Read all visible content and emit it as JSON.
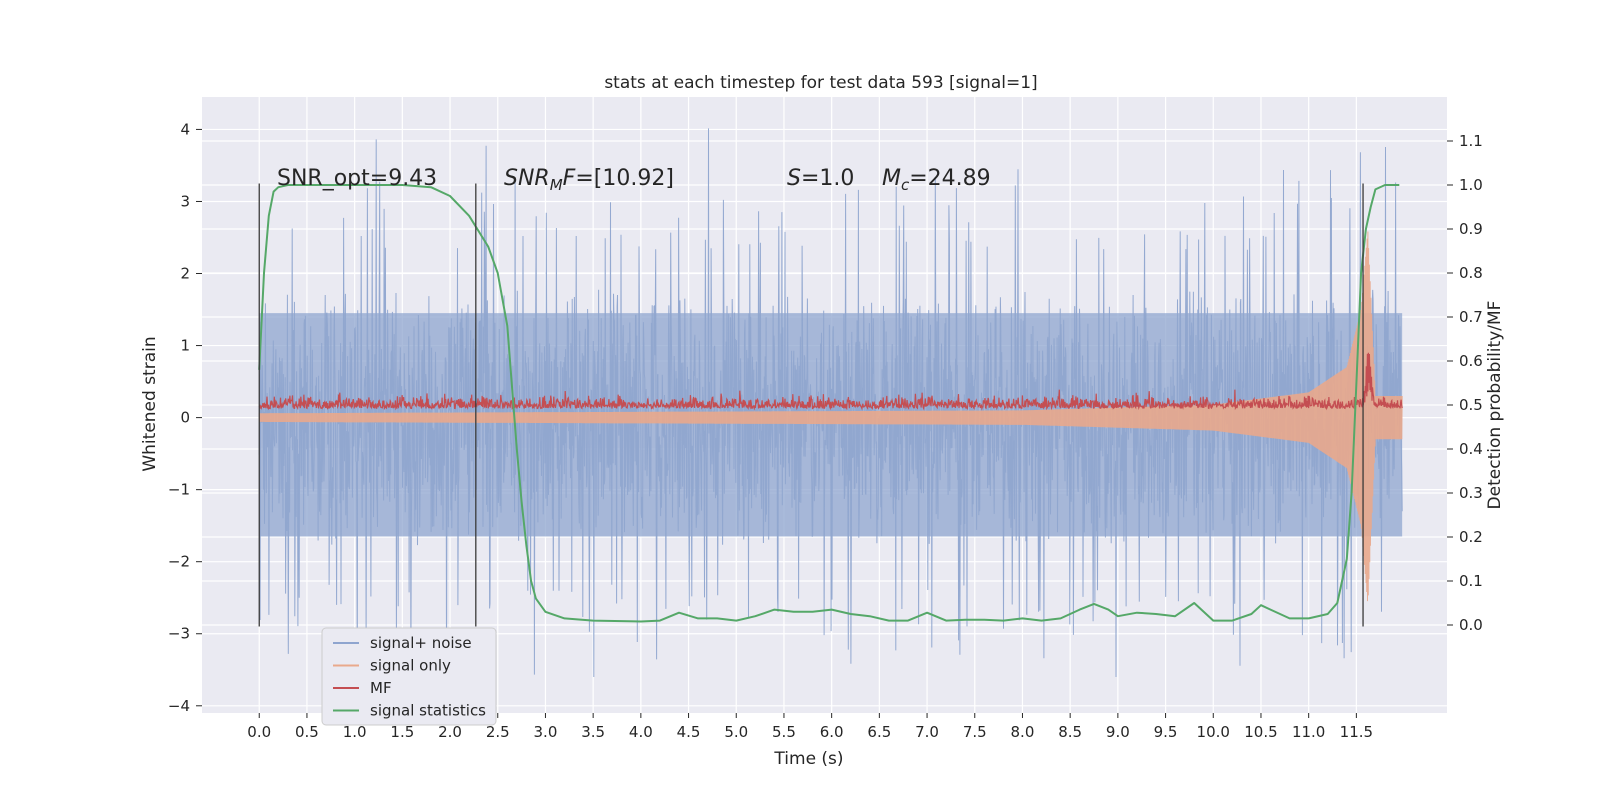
{
  "chart_data": {
    "type": "line",
    "title": "stats at each timestep for test data 593 [signal=1]",
    "xlabel": "Time (s)",
    "ylabel": "Whitened strain",
    "ylabel_right": "Detection probability/MF",
    "xlim": [
      -0.6,
      12.45
    ],
    "ylim": [
      -4.1,
      4.45
    ],
    "ylim_right": [
      -0.2,
      1.2
    ],
    "x_ticks": [
      0.0,
      0.5,
      1.0,
      1.5,
      2.0,
      2.5,
      3.0,
      3.5,
      4.0,
      4.5,
      5.0,
      5.5,
      6.0,
      6.5,
      7.0,
      7.5,
      8.0,
      8.5,
      9.0,
      9.5,
      10.0,
      10.5,
      11.0,
      11.5
    ],
    "x_tick_labels": [
      "0.0",
      "0.5",
      "1.0",
      "1.5",
      "2.0",
      "2.5",
      "3.0",
      "3.5",
      "4.0",
      "4.5",
      "5.0",
      "5.5",
      "6.0",
      "6.5",
      "7.0",
      "7.5",
      "8.0",
      "8.5",
      "9.0",
      "9.5",
      "10.0",
      "10.5",
      "11.0",
      "11.5"
    ],
    "y_ticks": [
      -4,
      -3,
      -2,
      -1,
      0,
      1,
      2,
      3,
      4
    ],
    "y_tick_labels": [
      "−4",
      "−3",
      "−2",
      "−1",
      "0",
      "1",
      "2",
      "3",
      "4"
    ],
    "y_ticks_right": [
      0.0,
      0.1,
      0.2,
      0.3,
      0.4,
      0.5,
      0.6,
      0.7,
      0.8,
      0.9,
      1.0,
      1.1
    ],
    "y_tick_labels_right": [
      "0.0",
      "0.1",
      "0.2",
      "0.3",
      "0.4",
      "0.5",
      "0.6",
      "0.7",
      "0.8",
      "0.9",
      "1.0",
      "1.1"
    ],
    "grid": true,
    "legend_placement": "lower-left",
    "annotations": {
      "snr_opt": "SNR_opt=9.43",
      "snr_mf_sym": "SNR",
      "snr_mf_sub": "M",
      "snr_mf_tail": "F",
      "snr_mf_value": "=[10.92]",
      "s_sym": "S",
      "s_value": "=1.0",
      "mc_sym": "M",
      "mc_sub": "c",
      "mc_value": "=24.89"
    },
    "vertical_markers": [
      0.0,
      2.27,
      11.57
    ],
    "series": [
      {
        "name": "signal+ noise",
        "color": "#8fa5cf",
        "axis": "left",
        "t_range": [
          0.0,
          11.98
        ],
        "typical_amplitude": 1.9,
        "max": 4.1,
        "min": -3.6
      },
      {
        "name": "signal only",
        "color": "#e9a98c",
        "axis": "left",
        "t_range": [
          0.0,
          11.98
        ],
        "note_envelope": [
          {
            "x": 0.0,
            "y": 0.06
          },
          {
            "x": 8.0,
            "y": 0.1
          },
          {
            "x": 10.0,
            "y": 0.18
          },
          {
            "x": 11.0,
            "y": 0.35
          },
          {
            "x": 11.4,
            "y": 0.7
          },
          {
            "x": 11.55,
            "y": 1.5
          },
          {
            "x": 11.62,
            "y": 2.6
          },
          {
            "x": 11.7,
            "y": 0.3
          }
        ]
      },
      {
        "name": "MF",
        "color": "#c44e52",
        "axis": "right",
        "t_range": [
          0.0,
          11.98
        ],
        "base": 0.5,
        "peak_x": 11.63,
        "peak_y": 0.63
      },
      {
        "name": "signal statistics",
        "color": "#55a868",
        "axis": "right",
        "x": [
          0.0,
          0.05,
          0.1,
          0.15,
          0.2,
          0.3,
          0.5,
          1.0,
          1.5,
          1.8,
          2.0,
          2.2,
          2.4,
          2.5,
          2.6,
          2.7,
          2.75,
          2.8,
          2.85,
          2.9,
          3.0,
          3.2,
          3.5,
          4.0,
          4.2,
          4.4,
          4.6,
          4.8,
          5.0,
          5.2,
          5.4,
          5.6,
          5.8,
          6.0,
          6.2,
          6.4,
          6.6,
          6.8,
          7.0,
          7.2,
          7.4,
          7.6,
          7.8,
          8.0,
          8.2,
          8.4,
          8.6,
          8.75,
          8.9,
          9.0,
          9.2,
          9.4,
          9.6,
          9.8,
          10.0,
          10.2,
          10.4,
          10.5,
          10.6,
          10.8,
          11.0,
          11.2,
          11.3,
          11.4,
          11.45,
          11.5,
          11.55,
          11.6,
          11.65,
          11.7,
          11.8,
          11.95
        ],
        "values": [
          0.58,
          0.8,
          0.93,
          0.985,
          0.995,
          1.0,
          1.0,
          1.0,
          1.0,
          0.995,
          0.975,
          0.93,
          0.86,
          0.8,
          0.68,
          0.4,
          0.28,
          0.18,
          0.1,
          0.06,
          0.03,
          0.015,
          0.01,
          0.008,
          0.01,
          0.028,
          0.015,
          0.015,
          0.01,
          0.02,
          0.035,
          0.03,
          0.03,
          0.035,
          0.025,
          0.02,
          0.01,
          0.01,
          0.028,
          0.01,
          0.012,
          0.012,
          0.01,
          0.015,
          0.01,
          0.015,
          0.035,
          0.048,
          0.035,
          0.02,
          0.028,
          0.025,
          0.02,
          0.05,
          0.01,
          0.01,
          0.025,
          0.045,
          0.035,
          0.015,
          0.015,
          0.025,
          0.05,
          0.15,
          0.3,
          0.55,
          0.8,
          0.9,
          0.95,
          0.99,
          1.0,
          1.0
        ]
      }
    ]
  }
}
